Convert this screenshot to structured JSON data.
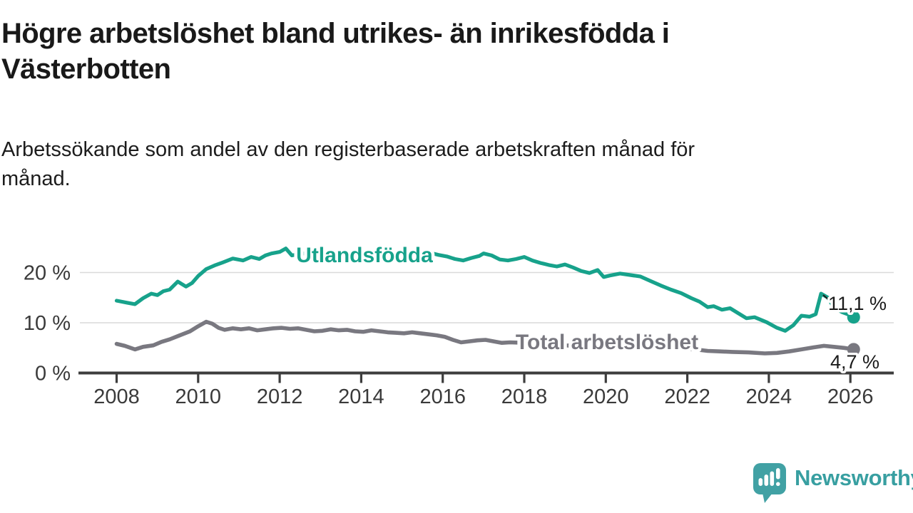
{
  "header": {
    "title_lines": [
      "Högre arbetslöshet bland utrikes- än inrikesfödda i",
      "Västerbotten"
    ],
    "subtitle_lines": [
      "Arbetssökande som andel av den registerbaserade arbetskraften månad för",
      "månad."
    ]
  },
  "footer": {
    "brand": "Newsworthy"
  },
  "colors": {
    "foreign_born_line": "#17a28b",
    "total_line": "#797880",
    "axis": "#3d3d3d",
    "grid": "#d9d9d9",
    "annotation_text": "#1a1a1a",
    "brand_teal": "#41a1a4"
  },
  "chart_data": {
    "type": "line",
    "title": "Högre arbetslöshet bland utrikes- än inrikesfödda i Västerbotten",
    "subtitle": "Arbetssökande som andel av den registerbaserade arbetskraften månad för månad.",
    "xlabel": "",
    "ylabel": "",
    "unit": "%",
    "grid": "horizontal",
    "legend_position": "inline-labels",
    "x_axis": {
      "range": [
        2007.8,
        2027.0
      ],
      "ticks": [
        2008,
        2010,
        2012,
        2014,
        2016,
        2018,
        2020,
        2022,
        2024,
        2026
      ]
    },
    "y_axis": {
      "range": [
        0,
        26
      ],
      "ticks": [
        {
          "value": 0,
          "label": "0 %"
        },
        {
          "value": 10,
          "label": "10 %"
        },
        {
          "value": 20,
          "label": "20 %"
        }
      ]
    },
    "series": [
      {
        "name": "Utlandsfödda",
        "color": "#17a28b",
        "end_label": "11,1 %",
        "end_value": 11.1,
        "x": [
          2008.0,
          2008.25,
          2008.45,
          2008.65,
          2008.85,
          2009.0,
          2009.15,
          2009.3,
          2009.5,
          2009.7,
          2009.85,
          2010.0,
          2010.2,
          2010.4,
          2010.6,
          2010.85,
          2011.1,
          2011.3,
          2011.5,
          2011.65,
          2011.8,
          2012.0,
          2012.15,
          2012.3,
          2012.5,
          2012.7,
          2012.85,
          2013.0,
          2013.2,
          2013.35,
          2013.5,
          2013.7,
          2013.9,
          2014.1,
          2014.3,
          2014.5,
          2014.7,
          2014.9,
          2015.1,
          2015.3,
          2015.5,
          2015.7,
          2015.9,
          2016.1,
          2016.3,
          2016.5,
          2016.7,
          2016.9,
          2017.0,
          2017.2,
          2017.4,
          2017.6,
          2017.8,
          2018.0,
          2018.2,
          2018.4,
          2018.6,
          2018.8,
          2019.0,
          2019.2,
          2019.4,
          2019.6,
          2019.8,
          2019.95,
          2020.1,
          2020.35,
          2020.6,
          2020.85,
          2021.1,
          2021.35,
          2021.6,
          2021.85,
          2022.1,
          2022.3,
          2022.5,
          2022.65,
          2022.85,
          2023.05,
          2023.25,
          2023.45,
          2023.65,
          2023.95,
          2024.2,
          2024.4,
          2024.6,
          2024.8,
          2025.0,
          2025.15,
          2025.28,
          2025.45,
          2025.6,
          2025.8,
          2026.0,
          2026.08
        ],
        "values": [
          14.4,
          14.0,
          13.7,
          14.9,
          15.8,
          15.5,
          16.3,
          16.6,
          18.2,
          17.2,
          17.9,
          19.3,
          20.7,
          21.4,
          22.0,
          22.8,
          22.4,
          23.1,
          22.7,
          23.4,
          23.8,
          24.1,
          24.8,
          23.4,
          23.7,
          23.9,
          23.5,
          23.7,
          23.2,
          23.5,
          22.8,
          23.2,
          22.9,
          23.3,
          23.6,
          23.2,
          23.0,
          23.3,
          23.1,
          23.4,
          23.7,
          23.9,
          23.5,
          23.2,
          22.7,
          22.4,
          22.9,
          23.3,
          23.8,
          23.4,
          22.6,
          22.4,
          22.7,
          23.1,
          22.4,
          21.9,
          21.5,
          21.2,
          21.6,
          21.0,
          20.3,
          19.9,
          20.5,
          19.1,
          19.4,
          19.8,
          19.5,
          19.2,
          18.3,
          17.4,
          16.6,
          15.9,
          14.9,
          14.2,
          13.1,
          13.3,
          12.6,
          12.9,
          11.9,
          10.9,
          11.1,
          10.1,
          9.0,
          8.4,
          9.5,
          11.4,
          11.2,
          11.7,
          15.8,
          15.0,
          13.0,
          12.1,
          11.5,
          11.1
        ]
      },
      {
        "name": "Total arbetslöshet",
        "color": "#797880",
        "end_label": "4,7 %",
        "end_value": 4.7,
        "x": [
          2008.0,
          2008.2,
          2008.45,
          2008.65,
          2008.9,
          2009.1,
          2009.3,
          2009.55,
          2009.8,
          2010.0,
          2010.2,
          2010.35,
          2010.5,
          2010.65,
          2010.85,
          2011.05,
          2011.25,
          2011.45,
          2011.65,
          2011.85,
          2012.05,
          2012.25,
          2012.45,
          2012.65,
          2012.85,
          2013.05,
          2013.25,
          2013.45,
          2013.65,
          2013.85,
          2014.05,
          2014.25,
          2014.45,
          2014.65,
          2014.85,
          2015.05,
          2015.25,
          2015.45,
          2015.65,
          2015.85,
          2016.05,
          2016.25,
          2016.45,
          2016.65,
          2016.85,
          2017.05,
          2017.25,
          2017.45,
          2017.65,
          2018.0,
          2018.4,
          2018.8,
          2019.2,
          2019.6,
          2020.0,
          2020.4,
          2020.8,
          2021.2,
          2021.6,
          2022.0,
          2022.3,
          2022.5,
          2022.8,
          2023.1,
          2023.5,
          2023.9,
          2024.2,
          2024.5,
          2024.8,
          2025.1,
          2025.35,
          2025.6,
          2025.85,
          2026.08
        ],
        "values": [
          5.8,
          5.4,
          4.7,
          5.2,
          5.5,
          6.2,
          6.7,
          7.5,
          8.3,
          9.3,
          10.2,
          9.8,
          9.0,
          8.6,
          8.9,
          8.7,
          8.9,
          8.5,
          8.7,
          8.9,
          9.0,
          8.8,
          8.9,
          8.6,
          8.3,
          8.4,
          8.7,
          8.5,
          8.6,
          8.3,
          8.2,
          8.5,
          8.3,
          8.1,
          8.0,
          7.9,
          8.1,
          7.9,
          7.7,
          7.5,
          7.2,
          6.6,
          6.1,
          6.3,
          6.5,
          6.6,
          6.3,
          6.0,
          6.1,
          6.0,
          5.8,
          5.6,
          5.4,
          5.3,
          5.7,
          6.4,
          6.1,
          5.7,
          5.2,
          4.8,
          4.6,
          4.4,
          4.3,
          4.2,
          4.1,
          3.9,
          4.0,
          4.3,
          4.7,
          5.1,
          5.4,
          5.2,
          5.0,
          4.7
        ]
      }
    ]
  }
}
